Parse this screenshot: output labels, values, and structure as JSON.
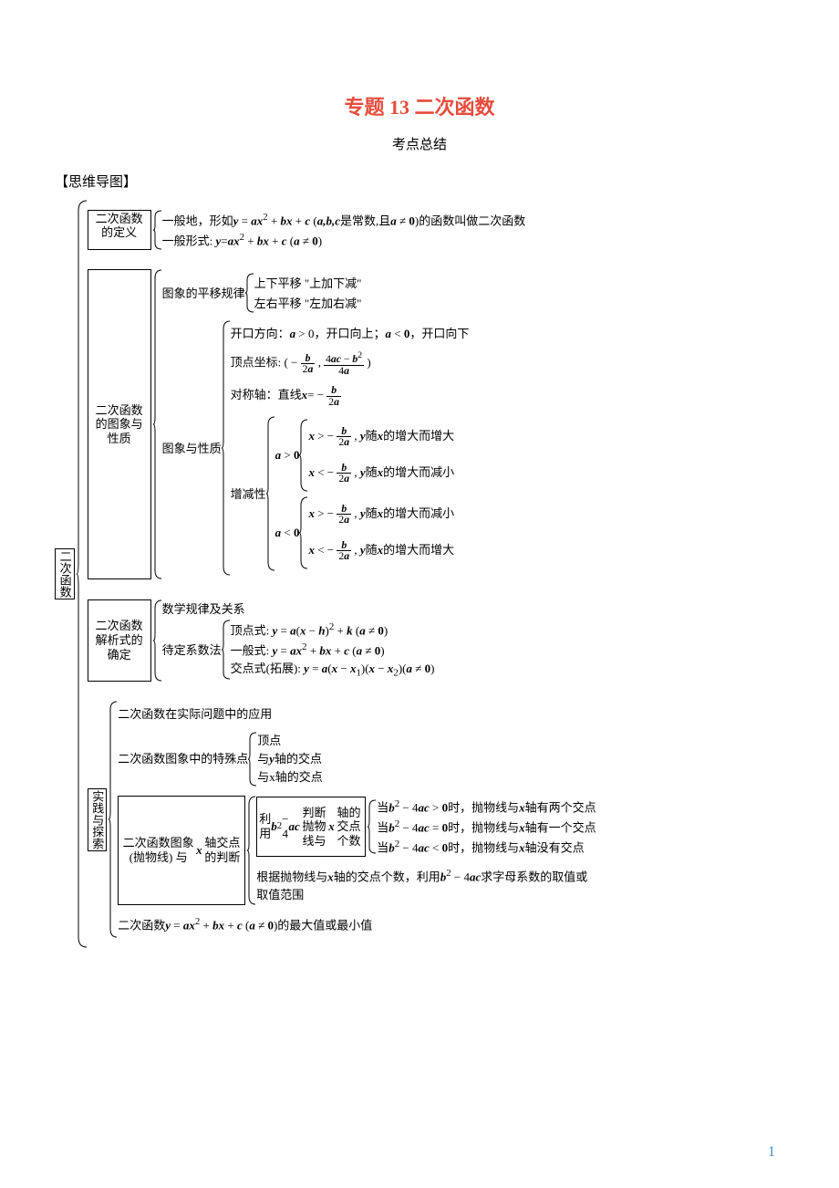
{
  "title": "专题 13  二次函数",
  "subtitle": "考点总结",
  "sectionLabel": "【思维导图】",
  "colors": {
    "title": "#e74c3c",
    "pageNum": "#428bca",
    "text": "#000000",
    "background": "#ffffff",
    "border": "#000000"
  },
  "root": "二次函数",
  "branches": [
    {
      "box": "二次函数的定义",
      "items": [
        "一般地，形如<span class='math-i'>y</span> = <span class='math-i'>ax</span><sup>2</sup> + <span class='math-i'>bx</span> + <span class='math-i'>c</span> (<span class='math-i'>a,b,c</span>是常数,且<span class='math-i'>a</span> ≠ <b>0</b>)的函数叫做二次函数",
        "一般形式: <span class='math-i'>y</span>=<span class='math-i'>ax</span><sup>2</sup> + <span class='math-i'>bx</span> + <span class='math-i'>c</span> (<span class='math-i'>a</span> ≠ <b>0</b>)"
      ]
    },
    {
      "box": "二次函数的图象与性质",
      "sub": [
        {
          "label": "图象的平移规律",
          "items": [
            "上下平移 \"上加下减\"",
            "左右平移 \"左加右减\""
          ]
        },
        {
          "label": "图象与性质",
          "items2": [
            "开口方向：<span class='math-i'>a</span> > 0，开口向上；<span class='math-i'>a</span> < <b>0</b>，开口向下",
            "顶点坐标: ( − <span class='frac'><span class='num'><span class='math-i'>b</span></span><span class='den'>2<span class='math-i'>a</span></span></span> , <span class='frac'><span class='num'>4<span class='math-i'>ac</span> − <span class='math-i'>b</span><sup>2</sup></span><span class='den'>4<span class='math-i'>a</span></span></span> )",
            "对称轴：直线<span class='math-i'>x</span>= − <span class='frac'><span class='num'><span class='math-i'>b</span></span><span class='den'>2<span class='math-i'>a</span></span></span>"
          ],
          "monotone": {
            "label": "增减性",
            "groups": [
              {
                "cond": "<span class='math-i'>a</span> > <b>0</b>",
                "cases": [
                  "<span class='math-i'>x</span> > − <span class='frac'><span class='num'><span class='math-i'>b</span></span><span class='den'>2<span class='math-i'>a</span></span></span> , <span class='math-i'>y</span>随<span class='math-i'>x</span>的增大而增大",
                  "<span class='math-i'>x</span> < − <span class='frac'><span class='num'><span class='math-i'>b</span></span><span class='den'>2<span class='math-i'>a</span></span></span> , <span class='math-i'>y</span>随<span class='math-i'>x</span>的增大而减小"
                ]
              },
              {
                "cond": "<span class='math-i'>a</span> < <b>0</b>",
                "cases": [
                  "<span class='math-i'>x</span> > − <span class='frac'><span class='num'><span class='math-i'>b</span></span><span class='den'>2<span class='math-i'>a</span></span></span> , <span class='math-i'>y</span>随<span class='math-i'>x</span>的增大而减小",
                  "<span class='math-i'>x</span> < − <span class='frac'><span class='num'><span class='math-i'>b</span></span><span class='den'>2<span class='math-i'>a</span></span></span> , <span class='math-i'>y</span>随<span class='math-i'>x</span>的增大而增大"
                ]
              }
            ]
          }
        }
      ]
    },
    {
      "box": "二次函数解析式的确定",
      "items": [
        "数学规律及关系"
      ],
      "method": {
        "label": "待定系数法",
        "items": [
          "顶点式: <span class='math-i'>y</span> = <span class='math-i'>a</span>(<span class='math-i'>x</span> − <span class='math-i'>h</span>)<sup>2</sup> + <span class='math-i'>k</span> (<span class='math-i'>a</span> ≠ <b>0</b>)",
          "一般式: <span class='math-i'>y</span> = <span class='math-i'>ax</span><sup>2</sup> + <span class='math-i'>bx</span> + <span class='math-i'>c</span> (<span class='math-i'>a</span> ≠ <b>0</b>)",
          "交点式(拓展): <span class='math-i'>y</span> = <span class='math-i'>a</span>(<span class='math-i'>x</span> − <span class='math-i'>x</span><sub>1</sub>)(<span class='math-i'>x</span> − <span class='math-i'>x</span><sub>2</sub>)(<span class='math-i'>a</span> ≠ <b>0</b>)"
        ]
      }
    },
    {
      "box": "实践与探索",
      "items": [
        "二次函数在实际问题中的应用"
      ],
      "special": {
        "label": "二次函数图象中的特殊点",
        "items": [
          "顶点",
          "与<span class='math-i'>y</span>轴的交点",
          "与x轴的交点"
        ]
      },
      "intersect": {
        "box": "二次函数图象 (抛物线) 与<span class='math-i'>x</span>轴交点的判断",
        "judge": {
          "label": "利用<span class='math-i'>b</span><sup>2</sup> − 4<span class='math-i'>ac</span>判断抛物线与<span class='math-i'>x</span>轴的交点个数",
          "items": [
            "当<span class='math-i'>b</span><sup>2</sup> − 4<span class='math-i'>ac</span> > <b>0</b>时，抛物线与<span class='math-i'>x</span>轴有两个交点",
            "当<span class='math-i'>b</span><sup>2</sup> − 4<span class='math-i'>ac</span> = <b>0</b>时，抛物线与<span class='math-i'>x</span>轴有一个交点",
            "当<span class='math-i'>b</span><sup>2</sup> − 4<span class='math-i'>ac</span> < <b>0</b>时，抛物线与<span class='math-i'>x</span>轴没有交点"
          ]
        },
        "reverse": "根据抛物线与<span class='math-i'>x</span>轴的交点个数，利用<span class='math-i'>b</span><sup>2</sup> − 4<span class='math-i'>ac</span>求字母系数的取值或取值范围"
      },
      "extrema": "二次函数<span class='math-i'>y</span> = <span class='math-i'>ax</span><sup>2</sup> + <span class='math-i'>bx</span> + <span class='math-i'>c</span> (<span class='math-i'>a</span> ≠ <b>0</b>)的最大值或最小值"
    }
  ],
  "pageNum": "1"
}
